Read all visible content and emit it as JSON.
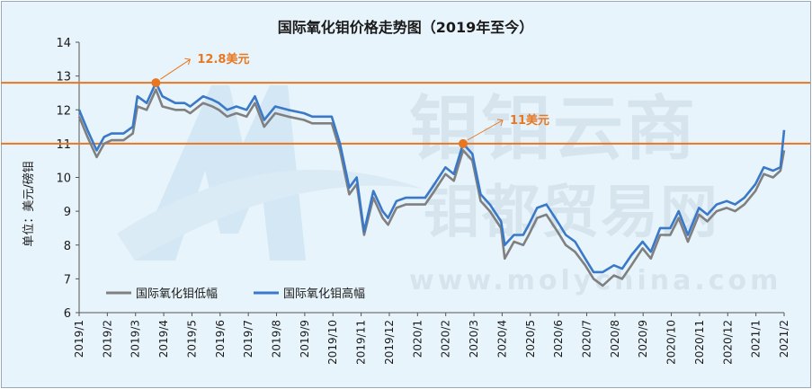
{
  "chart_data": {
    "type": "line",
    "title": "国际氧化钼价格走势图（2019年至今）",
    "ylabel": "单位：美元/磅钼",
    "xlabel": "",
    "ylim": [
      6,
      14
    ],
    "yticks": [
      "6",
      "7",
      "8",
      "9",
      "10",
      "11",
      "12",
      "13",
      "14"
    ],
    "x_tick_labels": [
      "2019/1",
      "2019/2",
      "2019/3",
      "2019/4",
      "2019/5",
      "2019/6",
      "2019/7",
      "2019/8",
      "2019/9",
      "2019/10",
      "2019/11",
      "2019/12",
      "2020/1",
      "2020/2",
      "2020/3",
      "2020/4",
      "2020/5",
      "2020/6",
      "2020/7",
      "2020/8",
      "2020/9",
      "2020/10",
      "2020/11",
      "2020/12",
      "2021/1",
      "2021/2"
    ],
    "grid": false,
    "legend_position": "bottom-left",
    "reference_lines": [
      {
        "value": 12.8,
        "label": "12.8美元",
        "color": "#e87722"
      },
      {
        "value": 11,
        "label": "11美元",
        "color": "#e87722"
      }
    ],
    "watermark": [
      "钼钼云商",
      "钼都贸易网",
      "www.molychina.com"
    ],
    "series": [
      {
        "name": "国际氧化钼低幅",
        "color": "#808080",
        "x": [
          "2019-01-01",
          "2019-01-10",
          "2019-01-20",
          "2019-01-28",
          "2019-02-05",
          "2019-02-18",
          "2019-02-28",
          "2019-03-05",
          "2019-03-15",
          "2019-03-25",
          "2019-04-01",
          "2019-04-15",
          "2019-04-25",
          "2019-05-01",
          "2019-05-15",
          "2019-05-25",
          "2019-06-01",
          "2019-06-10",
          "2019-06-20",
          "2019-07-01",
          "2019-07-10",
          "2019-07-20",
          "2019-08-01",
          "2019-08-15",
          "2019-09-01",
          "2019-09-10",
          "2019-09-20",
          "2019-10-01",
          "2019-10-10",
          "2019-10-20",
          "2019-10-28",
          "2019-11-05",
          "2019-11-15",
          "2019-11-25",
          "2019-12-01",
          "2019-12-10",
          "2019-12-20",
          "2020-01-01",
          "2020-01-10",
          "2020-01-20",
          "2020-02-01",
          "2020-02-10",
          "2020-02-20",
          "2020-03-01",
          "2020-03-10",
          "2020-03-20",
          "2020-04-01",
          "2020-04-05",
          "2020-04-15",
          "2020-04-25",
          "2020-05-01",
          "2020-05-10",
          "2020-05-20",
          "2020-06-01",
          "2020-06-10",
          "2020-06-20",
          "2020-07-01",
          "2020-07-10",
          "2020-07-20",
          "2020-08-01",
          "2020-08-10",
          "2020-08-20",
          "2020-09-01",
          "2020-09-10",
          "2020-09-20",
          "2020-10-01",
          "2020-10-10",
          "2020-10-20",
          "2020-11-01",
          "2020-11-10",
          "2020-11-20",
          "2020-12-01",
          "2020-12-10",
          "2020-12-20",
          "2021-01-01",
          "2021-01-10",
          "2021-01-20",
          "2021-01-28",
          "2021-02-01"
        ],
        "y": [
          11.8,
          11.2,
          10.6,
          11.0,
          11.1,
          11.1,
          11.3,
          12.1,
          12.0,
          12.6,
          12.1,
          12.0,
          12.0,
          11.9,
          12.2,
          12.1,
          12.0,
          11.8,
          11.9,
          11.8,
          12.2,
          11.5,
          11.9,
          11.8,
          11.7,
          11.6,
          11.6,
          11.6,
          10.8,
          9.5,
          9.8,
          8.3,
          9.4,
          8.8,
          8.6,
          9.1,
          9.2,
          9.2,
          9.2,
          9.6,
          10.1,
          9.9,
          10.8,
          10.5,
          9.3,
          9.0,
          8.5,
          7.6,
          8.1,
          8.0,
          8.3,
          8.8,
          8.9,
          8.4,
          8.0,
          7.8,
          7.4,
          7.0,
          6.8,
          7.1,
          7.0,
          7.4,
          7.9,
          7.6,
          8.3,
          8.3,
          8.8,
          8.1,
          8.9,
          8.7,
          9.0,
          9.1,
          9.0,
          9.2,
          9.6,
          10.1,
          10.0,
          10.2,
          10.8
        ]
      },
      {
        "name": "国际氧化钼高幅",
        "color": "#3a78c8",
        "x": [
          "2019-01-01",
          "2019-01-10",
          "2019-01-20",
          "2019-01-28",
          "2019-02-05",
          "2019-02-18",
          "2019-02-28",
          "2019-03-05",
          "2019-03-15",
          "2019-03-25",
          "2019-04-01",
          "2019-04-15",
          "2019-04-25",
          "2019-05-01",
          "2019-05-15",
          "2019-05-25",
          "2019-06-01",
          "2019-06-10",
          "2019-06-20",
          "2019-07-01",
          "2019-07-10",
          "2019-07-20",
          "2019-08-01",
          "2019-08-15",
          "2019-09-01",
          "2019-09-10",
          "2019-09-20",
          "2019-10-01",
          "2019-10-10",
          "2019-10-20",
          "2019-10-28",
          "2019-11-05",
          "2019-11-15",
          "2019-11-25",
          "2019-12-01",
          "2019-12-10",
          "2019-12-20",
          "2020-01-01",
          "2020-01-10",
          "2020-01-20",
          "2020-02-01",
          "2020-02-10",
          "2020-02-20",
          "2020-03-01",
          "2020-03-10",
          "2020-03-20",
          "2020-04-01",
          "2020-04-05",
          "2020-04-15",
          "2020-04-25",
          "2020-05-01",
          "2020-05-10",
          "2020-05-20",
          "2020-06-01",
          "2020-06-10",
          "2020-06-20",
          "2020-07-01",
          "2020-07-10",
          "2020-07-20",
          "2020-08-01",
          "2020-08-10",
          "2020-08-20",
          "2020-09-01",
          "2020-09-10",
          "2020-09-20",
          "2020-10-01",
          "2020-10-10",
          "2020-10-20",
          "2020-11-01",
          "2020-11-10",
          "2020-11-20",
          "2020-12-01",
          "2020-12-10",
          "2020-12-20",
          "2021-01-01",
          "2021-01-10",
          "2021-01-20",
          "2021-01-28",
          "2021-02-01"
        ],
        "y": [
          12.0,
          11.4,
          10.8,
          11.2,
          11.3,
          11.3,
          11.5,
          12.4,
          12.2,
          12.8,
          12.4,
          12.2,
          12.2,
          12.1,
          12.4,
          12.3,
          12.2,
          12.0,
          12.1,
          12.0,
          12.4,
          11.7,
          12.1,
          12.0,
          11.9,
          11.8,
          11.8,
          11.8,
          11.0,
          9.7,
          10.0,
          8.4,
          9.6,
          9.0,
          8.8,
          9.3,
          9.4,
          9.4,
          9.4,
          9.8,
          10.3,
          10.1,
          11.0,
          10.7,
          9.5,
          9.2,
          8.7,
          8.0,
          8.3,
          8.3,
          8.6,
          9.1,
          9.2,
          8.7,
          8.3,
          8.1,
          7.6,
          7.2,
          7.2,
          7.4,
          7.3,
          7.7,
          8.1,
          7.8,
          8.5,
          8.5,
          9.0,
          8.3,
          9.1,
          8.9,
          9.2,
          9.3,
          9.2,
          9.4,
          9.8,
          10.3,
          10.2,
          10.3,
          11.4
        ]
      }
    ]
  }
}
